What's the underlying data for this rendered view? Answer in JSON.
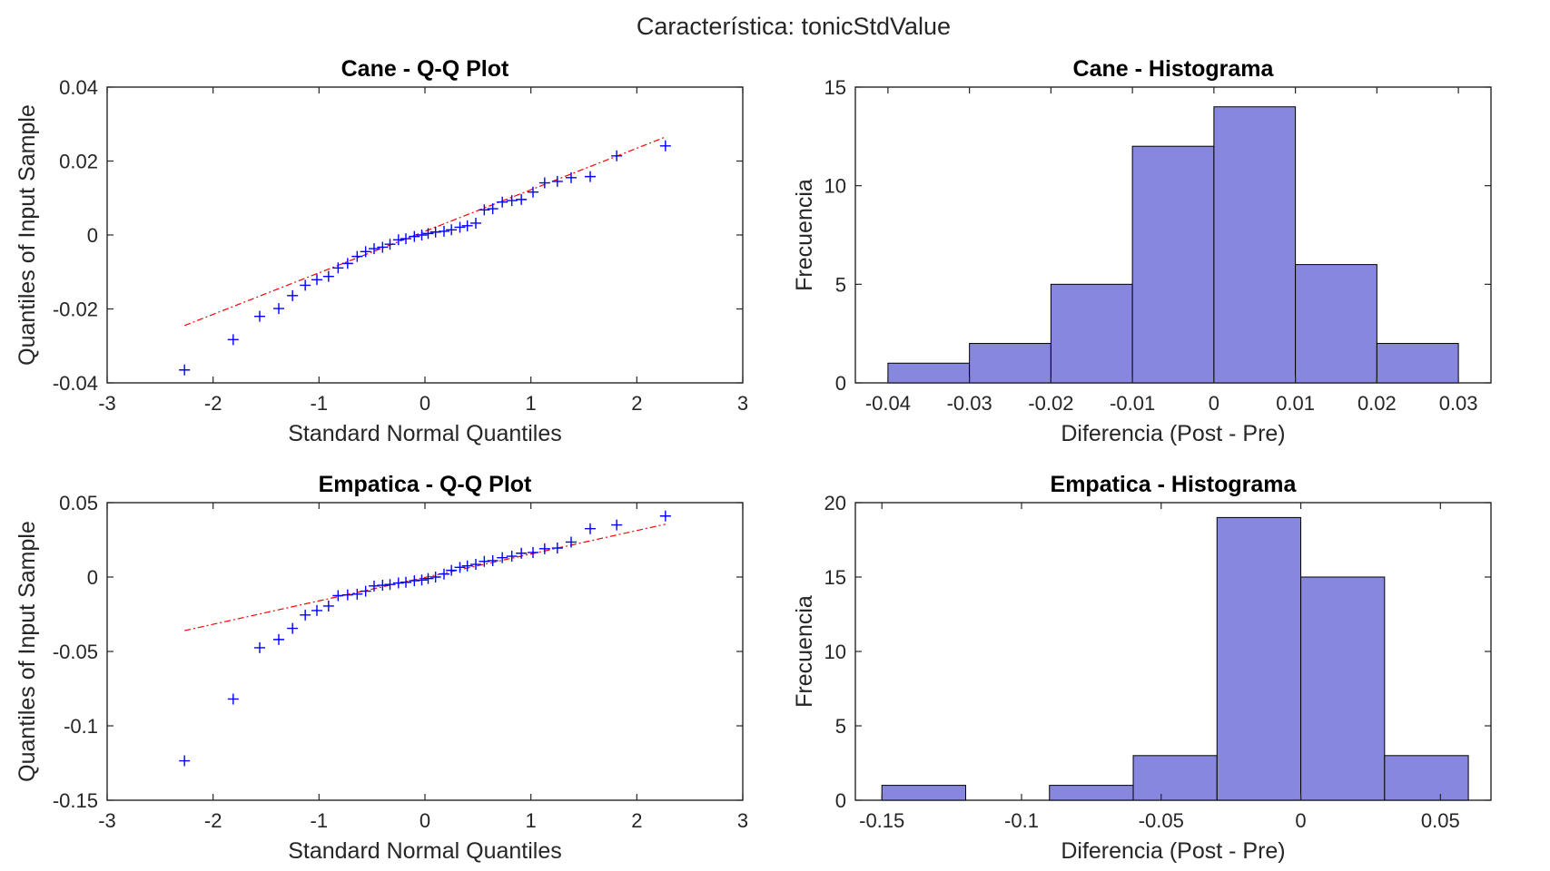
{
  "figure": {
    "suptitle": "Característica: tonicStdValue"
  },
  "colors": {
    "bar_fill": "#8787e0",
    "marker": "#0000ff",
    "fit_line": "#ff0000"
  },
  "chart_data": [
    {
      "type": "scatter",
      "title": "Cane - Q-Q Plot",
      "xlabel": "Standard Normal Quantiles",
      "ylabel": "Quantiles of Input Sample",
      "xlim": [
        -3,
        3
      ],
      "ylim": [
        -0.04,
        0.04
      ],
      "xticks": [
        -3,
        -2,
        -1,
        0,
        1,
        2,
        3
      ],
      "xtick_labels": [
        "-3",
        "-2",
        "-1",
        "0",
        "1",
        "2",
        "3"
      ],
      "yticks": [
        -0.04,
        -0.02,
        0,
        0.02,
        0.04
      ],
      "ytick_labels": [
        "-0.04",
        "-0.02",
        "0",
        "0.02",
        "0.04"
      ],
      "marker": "+",
      "reference_line": {
        "x": [
          -2.27,
          2.27
        ],
        "y": [
          -0.0245,
          0.0265
        ]
      },
      "x": [
        -2.27,
        -1.81,
        -1.56,
        -1.38,
        -1.25,
        -1.13,
        -1.02,
        -0.91,
        -0.82,
        -0.73,
        -0.64,
        -0.56,
        -0.48,
        -0.4,
        -0.33,
        -0.25,
        -0.18,
        -0.1,
        -0.03,
        0.03,
        0.1,
        0.18,
        0.25,
        0.33,
        0.4,
        0.48,
        0.56,
        0.64,
        0.73,
        0.82,
        0.91,
        1.02,
        1.13,
        1.25,
        1.38,
        1.56,
        1.81,
        2.27
      ],
      "y": [
        -0.0365,
        -0.0283,
        -0.022,
        -0.0199,
        -0.0164,
        -0.0136,
        -0.0121,
        -0.0112,
        -0.0089,
        -0.0077,
        -0.0058,
        -0.0045,
        -0.0037,
        -0.0033,
        -0.0025,
        -0.0013,
        -0.001,
        -0.0004,
        0.0,
        0.0004,
        0.0008,
        0.001,
        0.0014,
        0.0021,
        0.0025,
        0.0032,
        0.0068,
        0.0071,
        0.0089,
        0.0093,
        0.0096,
        0.0116,
        0.0141,
        0.0145,
        0.0155,
        0.0158,
        0.0214,
        0.0241
      ]
    },
    {
      "type": "bar",
      "title": "Cane - Histograma",
      "xlabel": "Diferencia (Post - Pre)",
      "ylabel": "Frecuencia",
      "xlim": [
        -0.044,
        0.034
      ],
      "ylim": [
        0,
        15
      ],
      "xticks": [
        -0.04,
        -0.03,
        -0.02,
        -0.01,
        0,
        0.01,
        0.02,
        0.03
      ],
      "xtick_labels": [
        "-0.04",
        "-0.03",
        "-0.02",
        "-0.01",
        "0",
        "0.01",
        "0.02",
        "0.03"
      ],
      "yticks": [
        0,
        5,
        10,
        15
      ],
      "ytick_labels": [
        "0",
        "5",
        "10",
        "15"
      ],
      "bin_edges": [
        -0.04,
        -0.03,
        -0.02,
        -0.01,
        0,
        0.01,
        0.02,
        0.03
      ],
      "values": [
        1,
        2,
        5,
        12,
        14,
        6,
        2
      ]
    },
    {
      "type": "scatter",
      "title": "Empatica - Q-Q Plot",
      "xlabel": "Standard Normal Quantiles",
      "ylabel": "Quantiles of Input Sample",
      "xlim": [
        -3,
        3
      ],
      "ylim": [
        -0.15,
        0.05
      ],
      "xticks": [
        -3,
        -2,
        -1,
        0,
        1,
        2,
        3
      ],
      "xtick_labels": [
        "-3",
        "-2",
        "-1",
        "0",
        "1",
        "2",
        "3"
      ],
      "yticks": [
        -0.15,
        -0.1,
        -0.05,
        0,
        0.05
      ],
      "ytick_labels": [
        "-0.15",
        "-0.1",
        "-0.05",
        "0",
        "0.05"
      ],
      "marker": "+",
      "reference_line": {
        "x": [
          -2.27,
          2.27
        ],
        "y": [
          -0.036,
          0.0355
        ]
      },
      "x": [
        -2.27,
        -1.81,
        -1.56,
        -1.38,
        -1.25,
        -1.13,
        -1.02,
        -0.91,
        -0.82,
        -0.73,
        -0.64,
        -0.56,
        -0.48,
        -0.4,
        -0.33,
        -0.25,
        -0.18,
        -0.1,
        -0.03,
        0.03,
        0.1,
        0.18,
        0.25,
        0.33,
        0.4,
        0.48,
        0.56,
        0.64,
        0.73,
        0.82,
        0.91,
        1.02,
        1.13,
        1.25,
        1.38,
        1.56,
        1.81,
        2.27
      ],
      "y": [
        -0.1235,
        -0.082,
        -0.0475,
        -0.042,
        -0.0345,
        -0.0255,
        -0.0225,
        -0.0195,
        -0.0125,
        -0.012,
        -0.0115,
        -0.0095,
        -0.006,
        -0.0055,
        -0.005,
        -0.004,
        -0.0035,
        -0.0025,
        -0.002,
        -0.001,
        0.0,
        0.002,
        0.0045,
        0.0065,
        0.0075,
        0.0085,
        0.0105,
        0.011,
        0.013,
        0.014,
        0.016,
        0.0165,
        0.019,
        0.0195,
        0.0235,
        0.0325,
        0.035,
        0.041
      ]
    },
    {
      "type": "bar",
      "title": "Empatica - Histograma",
      "xlabel": "Diferencia (Post - Pre)",
      "ylabel": "Frecuencia",
      "xlim": [
        -0.1595,
        0.0681
      ],
      "ylim": [
        0,
        20
      ],
      "xticks": [
        -0.15,
        -0.1,
        -0.05,
        0,
        0.05
      ],
      "xtick_labels": [
        "-0.15",
        "-0.1",
        "-0.05",
        "0",
        "0.05"
      ],
      "yticks": [
        0,
        5,
        10,
        15,
        20
      ],
      "ytick_labels": [
        "0",
        "5",
        "10",
        "15",
        "20"
      ],
      "bin_edges": [
        -0.15,
        -0.12,
        -0.09,
        -0.06,
        -0.03,
        0,
        0.03,
        0.06
      ],
      "values": [
        1,
        0,
        1,
        3,
        19,
        15,
        3
      ]
    }
  ]
}
